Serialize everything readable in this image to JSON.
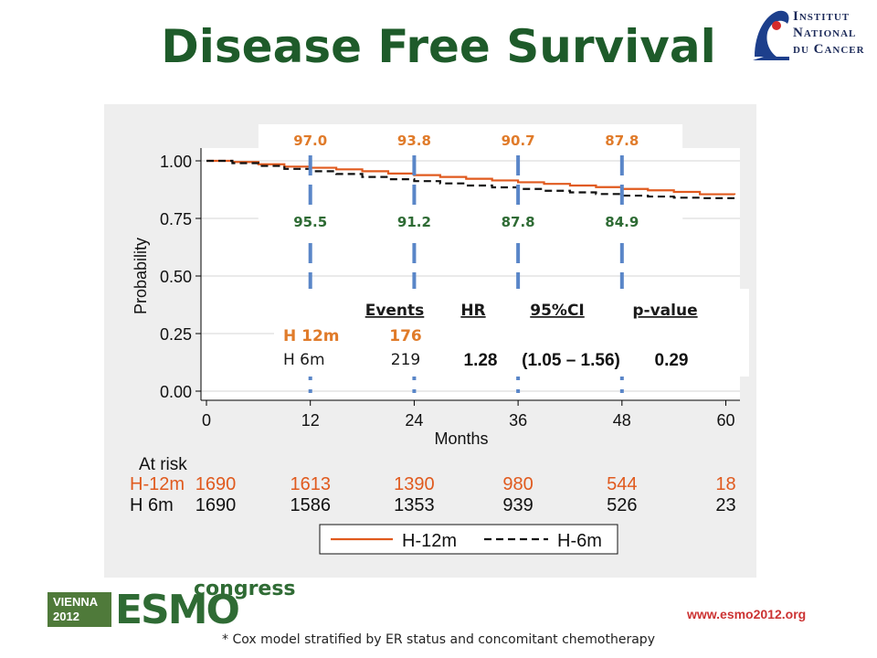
{
  "slide": {
    "title": "Disease Free Survival",
    "logo_lines": [
      "Institut",
      "National",
      "du Cancer"
    ],
    "footer_url": "www.esmo2012.org",
    "footnote": "* Cox model stratified by ER status and concomitant chemotherapy",
    "congress_logo": {
      "line1": "VIENNA",
      "line2": "2012",
      "brand": "ESMO",
      "word": "congress"
    }
  },
  "chart_data": {
    "type": "line",
    "xlabel": "Months",
    "ylabel": "Probability",
    "xlim": [
      0,
      61
    ],
    "ylim": [
      0,
      1
    ],
    "x_ticks": [
      "0",
      "12",
      "24",
      "36",
      "48",
      "60"
    ],
    "y_ticks": [
      "0.00",
      "0.25",
      "0.50",
      "0.75",
      "1.00"
    ],
    "series": [
      {
        "name": "H-12m",
        "color": "#e05a1e",
        "style": "solid",
        "x": [
          0,
          3,
          6,
          9,
          12,
          15,
          18,
          21,
          24,
          27,
          30,
          33,
          36,
          39,
          42,
          45,
          48,
          51,
          54,
          57,
          61
        ],
        "y": [
          1.0,
          0.995,
          0.985,
          0.975,
          0.97,
          0.963,
          0.955,
          0.945,
          0.938,
          0.93,
          0.922,
          0.915,
          0.907,
          0.9,
          0.893,
          0.886,
          0.878,
          0.872,
          0.865,
          0.855,
          0.852
        ]
      },
      {
        "name": "H-6m",
        "color": "#111111",
        "style": "dashed",
        "x": [
          0,
          3,
          6,
          9,
          12,
          15,
          18,
          21,
          24,
          27,
          30,
          33,
          36,
          39,
          42,
          45,
          48,
          51,
          54,
          57,
          61
        ],
        "y": [
          1.0,
          0.99,
          0.978,
          0.965,
          0.955,
          0.943,
          0.93,
          0.92,
          0.912,
          0.902,
          0.893,
          0.885,
          0.878,
          0.87,
          0.863,
          0.856,
          0.849,
          0.845,
          0.84,
          0.838,
          0.838
        ]
      }
    ],
    "timepoint_markers": [
      12,
      24,
      36,
      48
    ],
    "upper_labels": [
      "97.0",
      "93.8",
      "90.7",
      "87.8"
    ],
    "lower_labels": [
      "95.5",
      "91.2",
      "87.8",
      "84.9"
    ],
    "stats_table": {
      "headers": [
        "Events",
        "HR",
        "95%CI",
        "p-value"
      ],
      "rows": [
        {
          "label": "H 12m",
          "events": "176"
        },
        {
          "label": "H 6m",
          "events": "219"
        }
      ],
      "hr": "1.28",
      "ci": "(1.05 – 1.56)",
      "p": "0.29"
    },
    "at_risk": {
      "title": "At risk",
      "rows": [
        {
          "label": "H-12m",
          "values": [
            "1690",
            "1613",
            "1390",
            "980",
            "544",
            "18"
          ],
          "color": "#e05a1e"
        },
        {
          "label": "H 6m",
          "values": [
            "1690",
            "1586",
            "1353",
            "939",
            "526",
            "23"
          ],
          "color": "#111111"
        }
      ]
    },
    "legend": {
      "items": [
        "H-12m",
        "H-6m"
      ],
      "placement": "bottom"
    }
  }
}
